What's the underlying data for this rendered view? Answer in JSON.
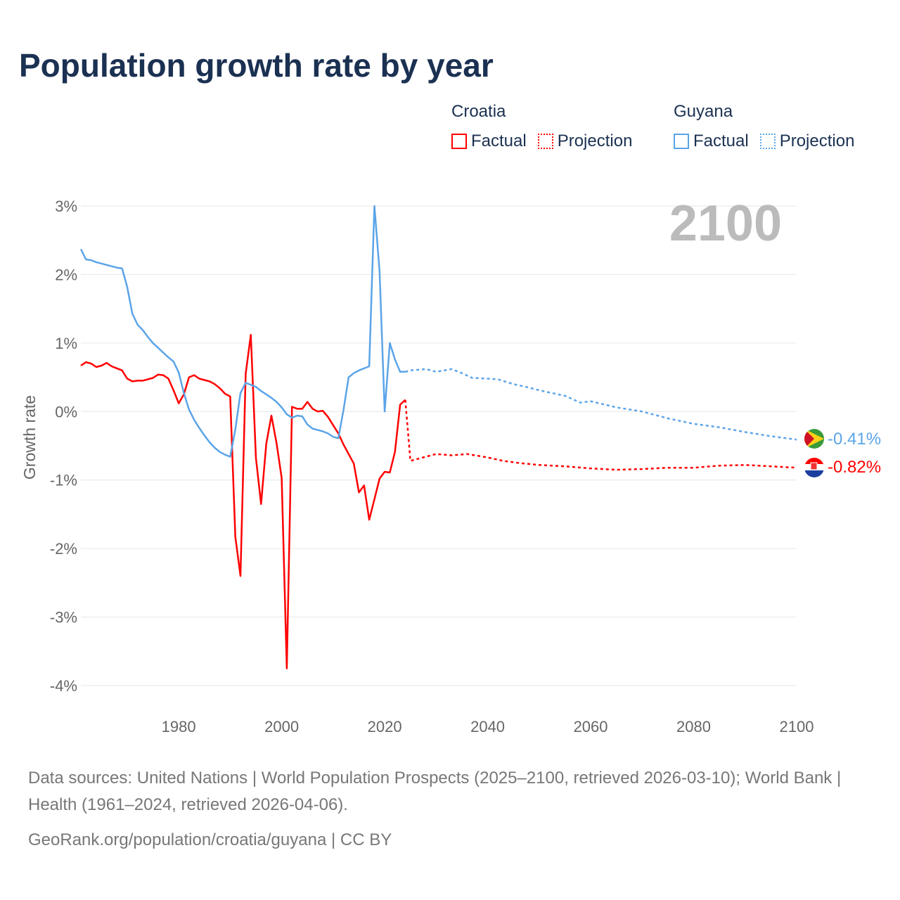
{
  "title": "Population growth rate by year",
  "legend": {
    "groups": [
      {
        "name": "Croatia",
        "factual": "Factual",
        "projection": "Projection",
        "color": "#ff0000"
      },
      {
        "name": "Guyana",
        "factual": "Factual",
        "projection": "Projection",
        "color": "#5ba4e8"
      }
    ]
  },
  "year_label": "2100",
  "end_labels": {
    "guyana": "-0.41%",
    "croatia": "-0.82%"
  },
  "footer": {
    "sources": "Data sources: United Nations | World Population Prospects (2025–2100, retrieved 2026-03-10); World Bank | Health (1961–2024, retrieved 2026-04-06).",
    "url": "GeoRank.org/population/croatia/guyana | CC BY"
  },
  "chart_data": {
    "type": "line",
    "title": "Population growth rate by year",
    "xlabel": "",
    "ylabel": "Growth rate",
    "xlim": [
      1961,
      2100
    ],
    "ylim": [
      -4,
      3
    ],
    "xticks": [
      1980,
      2000,
      2020,
      2040,
      2060,
      2080,
      2100
    ],
    "yticks": [
      {
        "v": 3,
        "l": "3%"
      },
      {
        "v": 2,
        "l": "2%"
      },
      {
        "v": 1,
        "l": "1%"
      },
      {
        "v": 0,
        "l": "0%"
      },
      {
        "v": -1,
        "l": "-1%"
      },
      {
        "v": -2,
        "l": "-2%"
      },
      {
        "v": -3,
        "l": "-3%"
      },
      {
        "v": -4,
        "l": "-4%"
      }
    ],
    "grid": true,
    "series": [
      {
        "name": "Croatia Factual",
        "color": "#ff0000",
        "dashed": false,
        "start": 1961,
        "values": [
          0.67,
          0.72,
          0.7,
          0.65,
          0.67,
          0.71,
          0.66,
          0.63,
          0.6,
          0.48,
          0.44,
          0.45,
          0.45,
          0.47,
          0.49,
          0.54,
          0.53,
          0.48,
          0.31,
          0.12,
          0.25,
          0.5,
          0.53,
          0.48,
          0.46,
          0.44,
          0.4,
          0.34,
          0.26,
          0.22,
          -1.83,
          -2.4,
          0.55,
          1.12,
          -0.68,
          -1.35,
          -0.47,
          -0.06,
          -0.46,
          -0.97,
          -3.75,
          0.07,
          0.04,
          0.04,
          0.14,
          0.04,
          0.0,
          0.01,
          -0.08,
          -0.2,
          -0.32,
          -0.48,
          -0.62,
          -0.76,
          -1.18,
          -1.08,
          -1.58,
          -1.28,
          -0.98,
          -0.88,
          -0.89,
          -0.59,
          0.1,
          0.17
        ]
      },
      {
        "name": "Croatia Projection",
        "color": "#ff0000",
        "dashed": true,
        "x": [
          2024,
          2025,
          2027,
          2030,
          2033,
          2036,
          2040,
          2043,
          2046,
          2050,
          2055,
          2060,
          2065,
          2070,
          2075,
          2080,
          2085,
          2090,
          2095,
          2100
        ],
        "values": [
          0.17,
          -0.72,
          -0.68,
          -0.62,
          -0.64,
          -0.62,
          -0.67,
          -0.72,
          -0.75,
          -0.78,
          -0.8,
          -0.83,
          -0.85,
          -0.84,
          -0.82,
          -0.82,
          -0.79,
          -0.78,
          -0.8,
          -0.82
        ]
      },
      {
        "name": "Guyana Factual",
        "color": "#5ba4e8",
        "dashed": false,
        "start": 1961,
        "values": [
          2.37,
          2.22,
          2.21,
          2.18,
          2.16,
          2.14,
          2.12,
          2.1,
          2.09,
          1.82,
          1.43,
          1.27,
          1.19,
          1.09,
          1.0,
          0.93,
          0.86,
          0.79,
          0.73,
          0.57,
          0.27,
          0.03,
          -0.12,
          -0.24,
          -0.35,
          -0.45,
          -0.53,
          -0.59,
          -0.63,
          -0.66,
          -0.26,
          0.27,
          0.42,
          0.39,
          0.36,
          0.3,
          0.25,
          0.2,
          0.14,
          0.06,
          -0.04,
          -0.09,
          -0.06,
          -0.07,
          -0.19,
          -0.25,
          -0.27,
          -0.29,
          -0.32,
          -0.37,
          -0.39,
          0.02,
          0.5,
          0.56,
          0.6,
          0.63,
          0.66,
          3.0,
          2.05,
          0.0,
          1.0,
          0.76,
          0.58,
          0.58
        ]
      },
      {
        "name": "Guyana Projection",
        "color": "#5ba4e8",
        "dashed": true,
        "x": [
          2024,
          2025,
          2028,
          2030,
          2033,
          2035,
          2037,
          2040,
          2042,
          2045,
          2048,
          2050,
          2055,
          2058,
          2060,
          2065,
          2070,
          2075,
          2080,
          2085,
          2090,
          2095,
          2100
        ],
        "values": [
          0.58,
          0.6,
          0.62,
          0.58,
          0.62,
          0.56,
          0.49,
          0.48,
          0.47,
          0.4,
          0.35,
          0.31,
          0.23,
          0.13,
          0.15,
          0.06,
          0.0,
          -0.1,
          -0.18,
          -0.23,
          -0.3,
          -0.36,
          -0.41
        ]
      }
    ]
  }
}
